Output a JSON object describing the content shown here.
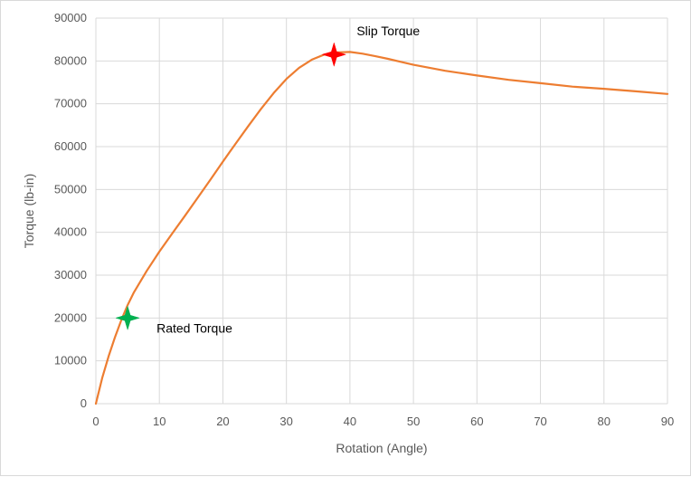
{
  "chart_data": {
    "type": "line",
    "title": "",
    "xlabel": "Rotation (Angle)",
    "ylabel": "Torque (lb-in)",
    "xlim": [
      0,
      90
    ],
    "ylim": [
      0,
      90000
    ],
    "x_ticks": [
      0,
      10,
      20,
      30,
      40,
      50,
      60,
      70,
      80,
      90
    ],
    "y_ticks": [
      0,
      10000,
      20000,
      30000,
      40000,
      50000,
      60000,
      70000,
      80000,
      90000
    ],
    "grid": true,
    "legend": "none",
    "series": [
      {
        "color": "#ed7d31",
        "x": [
          0,
          1,
          2,
          3,
          4,
          5,
          6,
          8,
          10,
          12,
          14,
          16,
          18,
          20,
          22,
          24,
          26,
          28,
          30,
          32,
          34,
          36,
          38,
          40,
          42,
          44,
          46,
          48,
          50,
          55,
          60,
          65,
          70,
          75,
          80,
          85,
          90
        ],
        "y": [
          0,
          6000,
          11000,
          15500,
          19500,
          23000,
          26000,
          31000,
          35500,
          39700,
          43800,
          48000,
          52200,
          56500,
          60700,
          64800,
          68800,
          72500,
          75800,
          78400,
          80300,
          81500,
          82000,
          82100,
          81700,
          81100,
          80500,
          79800,
          79100,
          77700,
          76600,
          75600,
          74800,
          74000,
          73500,
          72900,
          72300
        ]
      }
    ],
    "markers": [
      {
        "label": "Rated Torque",
        "x": 5,
        "y": 20000,
        "color": "#00b050"
      },
      {
        "label": "Slip Torque",
        "x": 37.5,
        "y": 81500,
        "color": "#ff0000"
      }
    ]
  }
}
